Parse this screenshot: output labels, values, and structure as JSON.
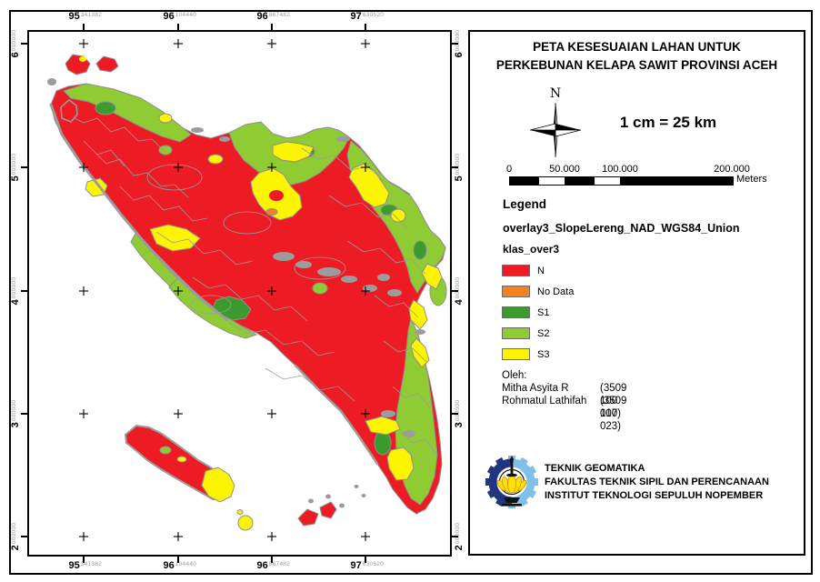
{
  "map": {
    "colors": {
      "n": "#ED1C24",
      "no_data": "#F58220",
      "s1": "#3C9B2D",
      "s2": "#8FCB33",
      "s3": "#FCF400",
      "boundary": "#9C9C9C"
    },
    "grid": {
      "lon_labels": [
        {
          "deg": "95",
          "frac": "341382"
        },
        {
          "deg": "96",
          "frac": "104440"
        },
        {
          "deg": "96",
          "frac": "867482"
        },
        {
          "deg": "97",
          "frac": "630520"
        }
      ],
      "lat_labels": [
        {
          "deg": "6",
          "frac": "000000"
        },
        {
          "deg": "5",
          "frac": "000000"
        },
        {
          "deg": "4",
          "frac": "000000"
        },
        {
          "deg": "3",
          "frac": "000000"
        },
        {
          "deg": "2",
          "frac": "000000"
        }
      ]
    }
  },
  "panel": {
    "title_line1": "PETA KESESUAIAN LAHAN UNTUK",
    "title_line2": "PERKEBUNAN KELAPA SAWIT PROVINSI ACEH",
    "north_label": "N",
    "scale_text": "1 cm = 25 km",
    "scalebar": {
      "ticks": [
        "0",
        "50.000",
        "100.000",
        "200.000"
      ],
      "unit": "Meters"
    },
    "legend": {
      "heading": "Legend",
      "layer": "overlay3_SlopeLereng_NAD_WGS84_Union",
      "sublayer": "klas_over3",
      "items": [
        {
          "label": "N",
          "color": "#ED1C24"
        },
        {
          "label": "No Data",
          "color": "#F58220"
        },
        {
          "label": "S1",
          "color": "#3C9B2D"
        },
        {
          "label": "S2",
          "color": "#8FCB33"
        },
        {
          "label": "S3",
          "color": "#FCF400"
        }
      ]
    },
    "authors": {
      "heading": "Oleh:",
      "rows": [
        {
          "name": "Mitha Asyita R",
          "nim": "(3509 100 017)"
        },
        {
          "name": "Rohmatul Lathifah",
          "nim": "(3509 100 023)"
        }
      ]
    },
    "institution": {
      "lines": [
        "TEKNIK GEOMATIKA",
        "FAKULTAS TEKNIK SIPIL DAN PERENCANAAN",
        "INSTITUT TEKNOLOGI SEPULUH NOPEMBER"
      ]
    }
  }
}
